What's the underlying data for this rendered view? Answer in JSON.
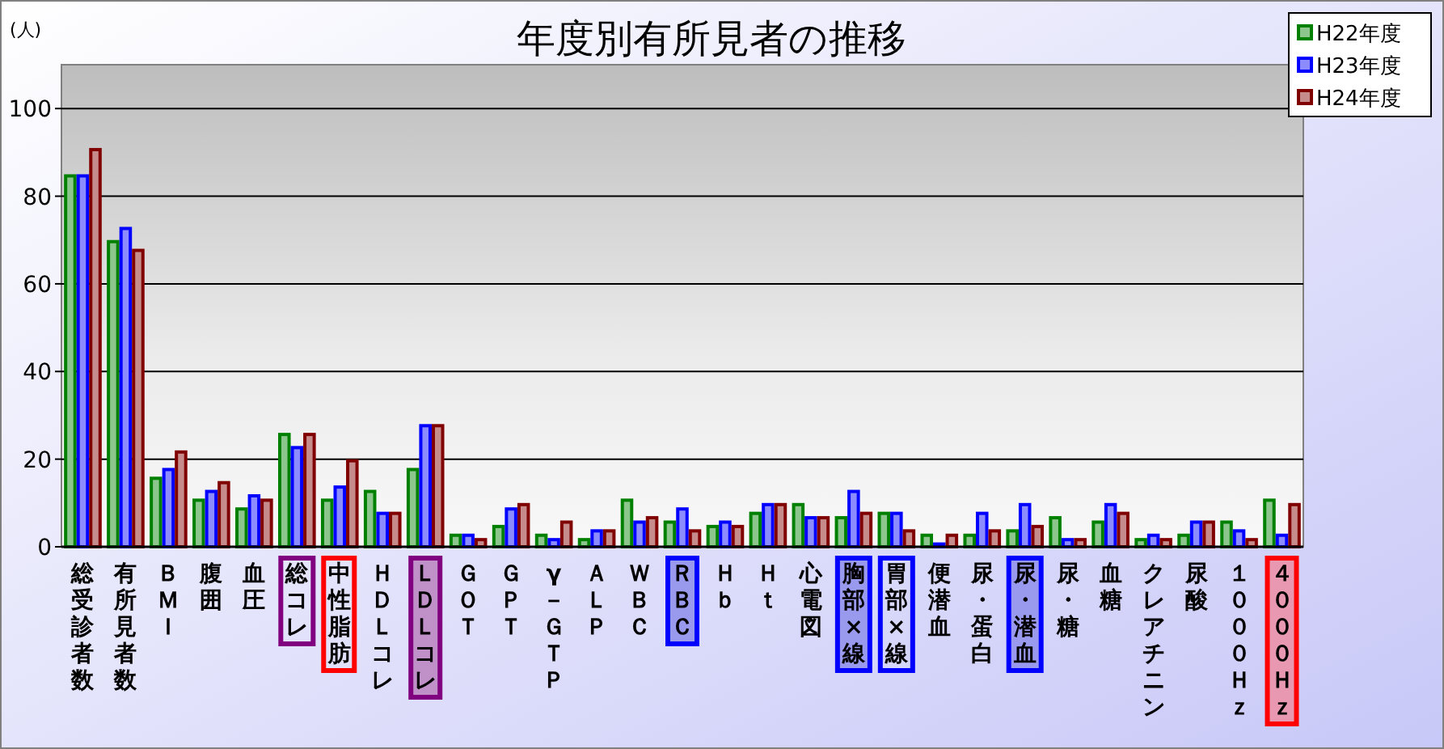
{
  "chart_data": {
    "type": "bar",
    "title": "年度別有所見者の推移",
    "ylabel": "(人)",
    "categories": [
      "総受診者数",
      "有所見者数",
      "ＢＭＩ",
      "腹囲",
      "血圧",
      "総コレ",
      "中性脂肪",
      "ＨＤＬコレ",
      "ＬＤＬコレ",
      "ＧＯＴ",
      "ＧＰＴ",
      "γ－ＧＴＰ",
      "ＡＬＰ",
      "ＷＢＣ",
      "ＲＢＣ",
      "Ｈｂ",
      "Ｈｔ",
      "心電図",
      "胸部×線",
      "胃部×線",
      "便潜血",
      "尿・蛋白",
      "尿・潜血",
      "尿・糖",
      "血糖",
      "クレアチニン",
      "尿酸",
      "１０００Ｈｚ",
      "４０００Ｈｚ"
    ],
    "series": [
      {
        "name": "H22年度",
        "color": "#008000",
        "values": [
          85,
          70,
          16,
          11,
          9,
          26,
          11,
          13,
          18,
          3,
          5,
          3,
          2,
          11,
          6,
          5,
          8,
          10,
          7,
          8,
          3,
          3,
          4,
          7,
          6,
          2,
          3,
          6,
          11
        ]
      },
      {
        "name": "H23年度",
        "color": "#0000ff",
        "values": [
          85,
          73,
          18,
          13,
          12,
          23,
          14,
          8,
          28,
          3,
          9,
          2,
          4,
          6,
          9,
          6,
          10,
          7,
          13,
          8,
          1,
          8,
          10,
          2,
          10,
          3,
          6,
          4,
          3
        ]
      },
      {
        "name": "H24年度",
        "color": "#800000",
        "values": [
          91,
          68,
          22,
          15,
          11,
          26,
          20,
          8,
          28,
          2,
          10,
          6,
          4,
          7,
          4,
          5,
          10,
          7,
          8,
          4,
          3,
          4,
          5,
          2,
          8,
          2,
          6,
          2,
          10
        ]
      }
    ],
    "ylim": [
      0,
      110
    ],
    "yticks": [
      0,
      20,
      40,
      60,
      80,
      100
    ],
    "grid": "y",
    "legend": "top right"
  }
}
